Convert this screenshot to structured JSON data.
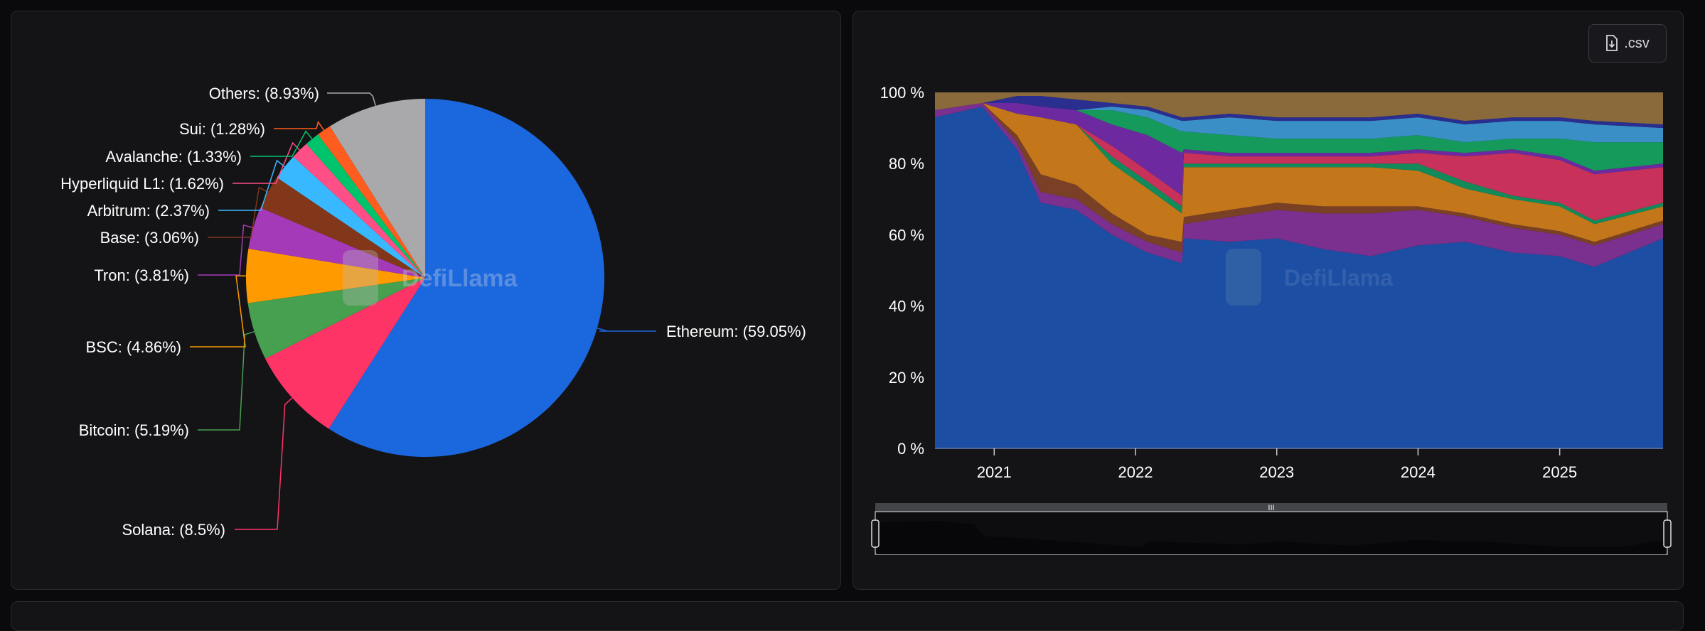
{
  "chart_data": [
    {
      "type": "pie",
      "slices": [
        {
          "label": "Ethereum",
          "value": 59.05,
          "text": "Ethereum: (59.05%)",
          "color": "#1b67dd"
        },
        {
          "label": "Solana",
          "value": 8.5,
          "text": "Solana: (8.5%)",
          "color": "#fe3466"
        },
        {
          "label": "Bitcoin",
          "value": 5.19,
          "text": "Bitcoin: (5.19%)",
          "color": "#46a04f"
        },
        {
          "label": "BSC",
          "value": 4.86,
          "text": "BSC: (4.86%)",
          "color": "#ff9a00"
        },
        {
          "label": "Tron",
          "value": 3.81,
          "text": "Tron: (3.81%)",
          "color": "#a53ab8"
        },
        {
          "label": "Base",
          "value": 3.06,
          "text": "Base: (3.06%)",
          "color": "#82361a"
        },
        {
          "label": "Arbitrum",
          "value": 2.37,
          "text": "Arbitrum: (2.37%)",
          "color": "#38b9ff"
        },
        {
          "label": "Hyperliquid L1",
          "value": 1.62,
          "text": "Hyperliquid L1: (1.62%)",
          "color": "#ff4f86"
        },
        {
          "label": "Avalanche",
          "value": 1.33,
          "text": "Avalanche: (1.33%)",
          "color": "#00c46b"
        },
        {
          "label": "Sui",
          "value": 1.28,
          "text": "Sui: (1.28%)",
          "color": "#ff5c1f"
        },
        {
          "label": "Others",
          "value": 8.93,
          "text": "Others: (8.93%)",
          "color": "#a9a8aa"
        }
      ],
      "watermark": "DefiLlama"
    },
    {
      "type": "area",
      "stacked": true,
      "normalized": true,
      "x": [
        "2020-08",
        "2020-12",
        "2021-03",
        "2021-05",
        "2021-08",
        "2021-11",
        "2022-02",
        "2022-05",
        "2022-05",
        "2022-09",
        "2023-01",
        "2023-05",
        "2023-09",
        "2024-01",
        "2024-05",
        "2024-09",
        "2025-01",
        "2025-04",
        "2025-09"
      ],
      "series": [
        {
          "color": "#1c4fa3",
          "values": [
            93,
            96,
            84,
            69,
            67,
            60,
            55,
            52,
            59,
            58,
            59,
            56,
            54,
            57,
            58,
            55,
            54,
            51,
            59
          ]
        },
        {
          "color": "#7b2f8f",
          "values": [
            2,
            1,
            2,
            3,
            3,
            3,
            3,
            3,
            4,
            7,
            8,
            10,
            12,
            10,
            7,
            7,
            6,
            6,
            4
          ]
        },
        {
          "color": "#7a4025",
          "values": [
            0,
            0,
            2,
            5,
            4,
            3,
            2,
            3,
            2,
            2,
            2,
            2,
            2,
            1,
            1,
            1,
            1,
            1,
            1
          ]
        },
        {
          "color": "#c4761a",
          "values": [
            0,
            0,
            6,
            16,
            17,
            14,
            13,
            8,
            14,
            12,
            10,
            11,
            11,
            10,
            7,
            7,
            7,
            5,
            4
          ]
        },
        {
          "color": "#138a5a",
          "values": [
            0,
            0,
            0,
            0,
            0,
            2,
            2,
            2,
            1,
            1,
            1,
            1,
            1,
            2,
            2,
            1,
            1,
            1,
            1
          ]
        },
        {
          "color": "#c8325a",
          "values": [
            0,
            0,
            0,
            0,
            0,
            3,
            3,
            3,
            3,
            2,
            2,
            2,
            2,
            3,
            7,
            12,
            12,
            13,
            10
          ]
        },
        {
          "color": "#6d2aa0",
          "values": [
            0,
            0,
            3,
            3,
            4,
            6,
            10,
            12,
            1,
            1,
            1,
            1,
            1,
            1,
            1,
            1,
            1,
            1,
            1
          ]
        },
        {
          "color": "#159a5c",
          "values": [
            0,
            0,
            0,
            0,
            0,
            4,
            5,
            6,
            5,
            5,
            4,
            4,
            4,
            4,
            3,
            3,
            5,
            8,
            6
          ]
        },
        {
          "color": "#3a8fc7",
          "values": [
            0,
            0,
            0,
            0,
            0,
            1,
            2,
            3,
            3,
            5,
            5,
            5,
            5,
            5,
            5,
            5,
            5,
            5,
            4
          ]
        },
        {
          "color": "#2a2f8f",
          "values": [
            0,
            0,
            2,
            3,
            3,
            1,
            1,
            1,
            1,
            1,
            1,
            1,
            1,
            1,
            1,
            1,
            1,
            1,
            1
          ]
        },
        {
          "color": "#8a6a3a",
          "values": [
            5,
            3,
            1,
            1,
            2,
            3,
            4,
            7,
            7,
            6,
            7,
            7,
            7,
            6,
            8,
            7,
            7,
            8,
            9
          ]
        }
      ],
      "y_ticks": [
        "0 %",
        "20 %",
        "40 %",
        "60 %",
        "80 %",
        "100 %"
      ],
      "ylim": [
        0,
        100
      ],
      "x_ticks": [
        "2021",
        "2022",
        "2023",
        "2024",
        "2025"
      ],
      "grid": false,
      "watermark": "DefiLlama"
    }
  ],
  "toolbar": {
    "csv_label": ".csv",
    "csv_icon": "file-download-icon"
  }
}
